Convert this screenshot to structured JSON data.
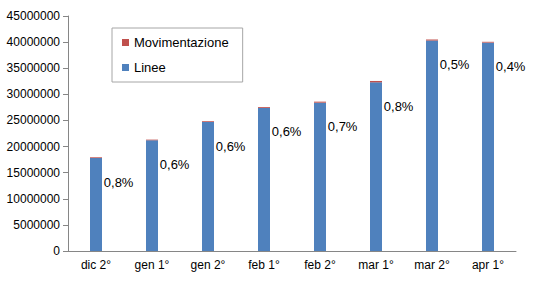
{
  "chart_data": {
    "type": "bar",
    "stacked": true,
    "categories": [
      "dic 2°",
      "gen 1°",
      "gen 2°",
      "feb 1°",
      "feb 2°",
      "mar 1°",
      "mar 2°",
      "apr 1°"
    ],
    "series": [
      {
        "name": "Linee",
        "color": "#4f81bd",
        "values": [
          17800000,
          21200000,
          24700000,
          27400000,
          28400000,
          32300000,
          40300000,
          39900000
        ]
      },
      {
        "name": "Movimentazione",
        "color": "#c0504d",
        "values": [
          144000,
          128000,
          149000,
          165000,
          200000,
          260000,
          200000,
          160000
        ]
      }
    ],
    "annotations": [
      "0,8%",
      "0,6%",
      "0,6%",
      "0,6%",
      "0,7%",
      "0,8%",
      "0,5%",
      "0,4%"
    ],
    "ylim": [
      0,
      45000000
    ],
    "yticks": [
      0,
      5000000,
      10000000,
      15000000,
      20000000,
      25000000,
      30000000,
      35000000,
      40000000,
      45000000
    ],
    "grid": false,
    "legend": "top-left"
  }
}
